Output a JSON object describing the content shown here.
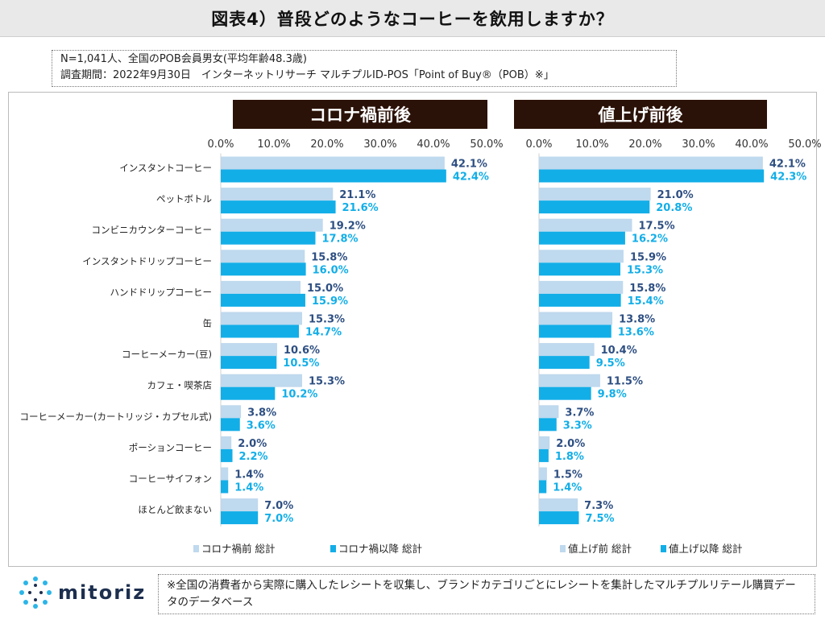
{
  "title": "図表4）普段どのようなコーヒーを飲用しますか？",
  "notes": {
    "line1": "N=1,041人、全国のPOB会員男女(平均年齢48.3歳)",
    "line2": "調査期間：2022年9月30日　インターネットリサーチ マルチプルID-POS「Point of Buy®（POB）※」"
  },
  "footnote": "※全国の消費者から実際に購入したレシートを収集し、ブランドカテゴリごとにレシートを集計したマルチプルリテール購買データのデータベース",
  "logo": {
    "text": "mitoriz",
    "icon": "sun-dots-icon"
  },
  "colors": {
    "before": "#bfd9ee",
    "after": "#12aee8",
    "value_text": "#2e4f82",
    "panel_header": "#2b1208"
  },
  "chart_data": [
    {
      "type": "bar",
      "orientation": "horizontal",
      "title": "コロナ禍前後",
      "categories": [
        "インスタントコーヒー",
        "ペットボトル",
        "コンビニカウンターコーヒー",
        "インスタントドリップコーヒー",
        "ハンドドリップコーヒー",
        "缶",
        "コーヒーメーカー(豆)",
        "カフェ・喫茶店",
        "コーヒーメーカー(カートリッジ・カプセル式)",
        "ポーションコーヒー",
        "コーヒーサイフォン",
        "ほとんど飲まない"
      ],
      "series": [
        {
          "name": "コロナ禍前 総計",
          "values": [
            42.1,
            21.1,
            19.2,
            15.8,
            15.0,
            15.3,
            10.6,
            15.3,
            3.8,
            2.0,
            1.4,
            7.0
          ]
        },
        {
          "name": "コロナ禍以降 総計",
          "values": [
            42.4,
            21.6,
            17.8,
            16.0,
            15.9,
            14.7,
            10.5,
            10.2,
            3.6,
            2.2,
            1.4,
            7.0
          ]
        }
      ],
      "xlim": [
        0,
        50
      ],
      "xticks": [
        "0.0%",
        "10.0%",
        "20.0%",
        "30.0%",
        "40.0%",
        "50.0%"
      ],
      "legend_position": "bottom",
      "grid": false
    },
    {
      "type": "bar",
      "orientation": "horizontal",
      "title": "値上げ前後",
      "categories": [
        "インスタントコーヒー",
        "ペットボトル",
        "コンビニカウンターコーヒー",
        "インスタントドリップコーヒー",
        "ハンドドリップコーヒー",
        "缶",
        "コーヒーメーカー(豆)",
        "カフェ・喫茶店",
        "コーヒーメーカー(カートリッジ・カプセル式)",
        "ポーションコーヒー",
        "コーヒーサイフォン",
        "ほとんど飲まない"
      ],
      "series": [
        {
          "name": "値上げ前 総計",
          "values": [
            42.1,
            21.0,
            17.5,
            15.9,
            15.8,
            13.8,
            10.4,
            11.5,
            3.7,
            2.0,
            1.5,
            7.3
          ]
        },
        {
          "name": "値上げ以降 総計",
          "values": [
            42.3,
            20.8,
            16.2,
            15.3,
            15.4,
            13.6,
            9.5,
            9.8,
            3.3,
            1.8,
            1.4,
            7.5
          ]
        }
      ],
      "xlim": [
        0,
        50
      ],
      "xticks": [
        "0.0%",
        "10.0%",
        "20.0%",
        "30.0%",
        "40.0%",
        "50.0%"
      ],
      "legend_position": "bottom",
      "grid": false
    }
  ]
}
